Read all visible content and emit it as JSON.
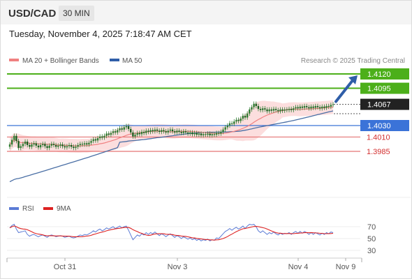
{
  "header": {
    "symbol": "USD/CAD",
    "timeframe": "30 MIN"
  },
  "datetime": "Tuesday, November 4, 2025 7:18:47 AM CET",
  "legend": {
    "ma20_label": "MA 20 + Bollinger Bands",
    "ma50_label": "MA 50",
    "credit": "Research © 2025 Trading Central"
  },
  "colors": {
    "candle": "#2e7d32",
    "ma20": "#f08080",
    "bollinger_fill": "#fbd6d6",
    "ma50": "#4a6fa5",
    "resistance": "#4caf1a",
    "support": "#e57373",
    "pivot": "#3b73d8",
    "arrow": "#2f5ea8",
    "rsi": "#5b7bd5",
    "rsi_ma": "#dd2222"
  },
  "levels": [
    {
      "value": 1.412,
      "label": "1.4120",
      "type": "resistance"
    },
    {
      "value": 1.4095,
      "label": "1.4095",
      "type": "resistance"
    },
    {
      "value": 1.4067,
      "label": "1.4067",
      "type": "current"
    },
    {
      "value": 1.403,
      "label": "1.4030",
      "type": "pivot"
    },
    {
      "value": 1.401,
      "label": "1.4010",
      "type": "support"
    },
    {
      "value": 1.3985,
      "label": "1.3985",
      "type": "support"
    }
  ],
  "x_ticks": [
    "Oct 31",
    "Nov 3",
    "Nov 4",
    "Nov 9"
  ],
  "rsi_legend": {
    "rsi_label": "RSI",
    "ma_label": "9MA"
  },
  "rsi_ticks": [
    "70",
    "50",
    "30"
  ],
  "chart_data": {
    "type": "line",
    "price_range": [
      1.3925,
      1.4135
    ],
    "close": [
      1.3997,
      1.4005,
      1.4012,
      1.4003,
      1.3991,
      1.3994,
      1.3998,
      1.4002,
      1.3996,
      1.3993,
      1.3997,
      1.3999,
      1.3995,
      1.3992,
      1.3996,
      1.3998,
      1.3994,
      1.3991,
      1.3995,
      1.3998,
      1.3996,
      1.3993,
      1.3995,
      1.3997,
      1.3994,
      1.3992,
      1.3994,
      1.3996,
      1.3993,
      1.3991,
      1.3993,
      1.3996,
      1.3998,
      1.3997,
      1.3999,
      1.3997,
      1.4,
      1.4003,
      1.4006,
      1.4004,
      1.4008,
      1.4011,
      1.4009,
      1.4012,
      1.4016,
      1.4014,
      1.4017,
      1.402,
      1.4018,
      1.4022,
      1.4025,
      1.4023,
      1.4027,
      1.4029,
      1.4024,
      1.4018,
      1.4011,
      1.4014,
      1.4017,
      1.4015,
      1.4019,
      1.4017,
      1.4021,
      1.4019,
      1.4022,
      1.402,
      1.4023,
      1.4021,
      1.4019,
      1.4022,
      1.402,
      1.4018,
      1.4021,
      1.4023,
      1.402,
      1.4018,
      1.4021,
      1.4019,
      1.4017,
      1.402,
      1.4018,
      1.4016,
      1.4018,
      1.4015,
      1.4017,
      1.4014,
      1.4016,
      1.4013,
      1.4015,
      1.4014,
      1.4016,
      1.4013,
      1.4015,
      1.4014,
      1.4017,
      1.4016,
      1.4019,
      1.4023,
      1.4027,
      1.403,
      1.4034,
      1.4033,
      1.4037,
      1.404,
      1.4038,
      1.4042,
      1.4047,
      1.4044,
      1.4051,
      1.4058,
      1.4062,
      1.4068,
      1.4064,
      1.4059,
      1.4057,
      1.406,
      1.4058,
      1.4055,
      1.4058,
      1.4056,
      1.4059,
      1.4057,
      1.4055,
      1.4058,
      1.4056,
      1.4058,
      1.4057,
      1.4059,
      1.4057,
      1.406,
      1.4062,
      1.406,
      1.4063,
      1.4061,
      1.4064,
      1.4062,
      1.406,
      1.4063,
      1.4061,
      1.4064,
      1.4062,
      1.406,
      1.4063,
      1.4061,
      1.4064,
      1.4063,
      1.4066,
      1.4067
    ],
    "rsi": [
      68,
      72,
      74,
      66,
      60,
      61,
      62,
      63,
      57,
      54,
      56,
      57,
      55,
      53,
      55,
      56,
      54,
      52,
      55,
      56,
      55,
      53,
      54,
      55,
      54,
      52,
      53,
      54,
      52,
      51,
      52,
      54,
      56,
      55,
      57,
      56,
      58,
      60,
      63,
      61,
      64,
      66,
      63,
      65,
      68,
      66,
      68,
      70,
      67,
      69,
      71,
      68,
      70,
      71,
      64,
      56,
      48,
      52,
      56,
      54,
      58,
      56,
      60,
      57,
      60,
      58,
      61,
      58,
      55,
      58,
      56,
      53,
      56,
      58,
      55,
      52,
      55,
      53,
      50,
      53,
      51,
      49,
      51,
      48,
      50,
      47,
      49,
      46,
      48,
      47,
      49,
      46,
      48,
      47,
      51,
      50,
      54,
      58,
      62,
      64,
      67,
      64,
      67,
      69,
      66,
      68,
      71,
      67,
      71,
      74,
      73,
      74,
      70,
      63,
      60,
      63,
      60,
      57,
      60,
      58,
      61,
      58,
      56,
      59,
      57,
      59,
      58,
      60,
      57,
      60,
      62,
      59,
      62,
      59,
      62,
      60,
      57,
      60,
      57,
      60,
      58,
      56,
      59,
      57,
      60,
      58,
      61,
      60
    ],
    "rsi_ticks": [
      70,
      50,
      30
    ]
  }
}
